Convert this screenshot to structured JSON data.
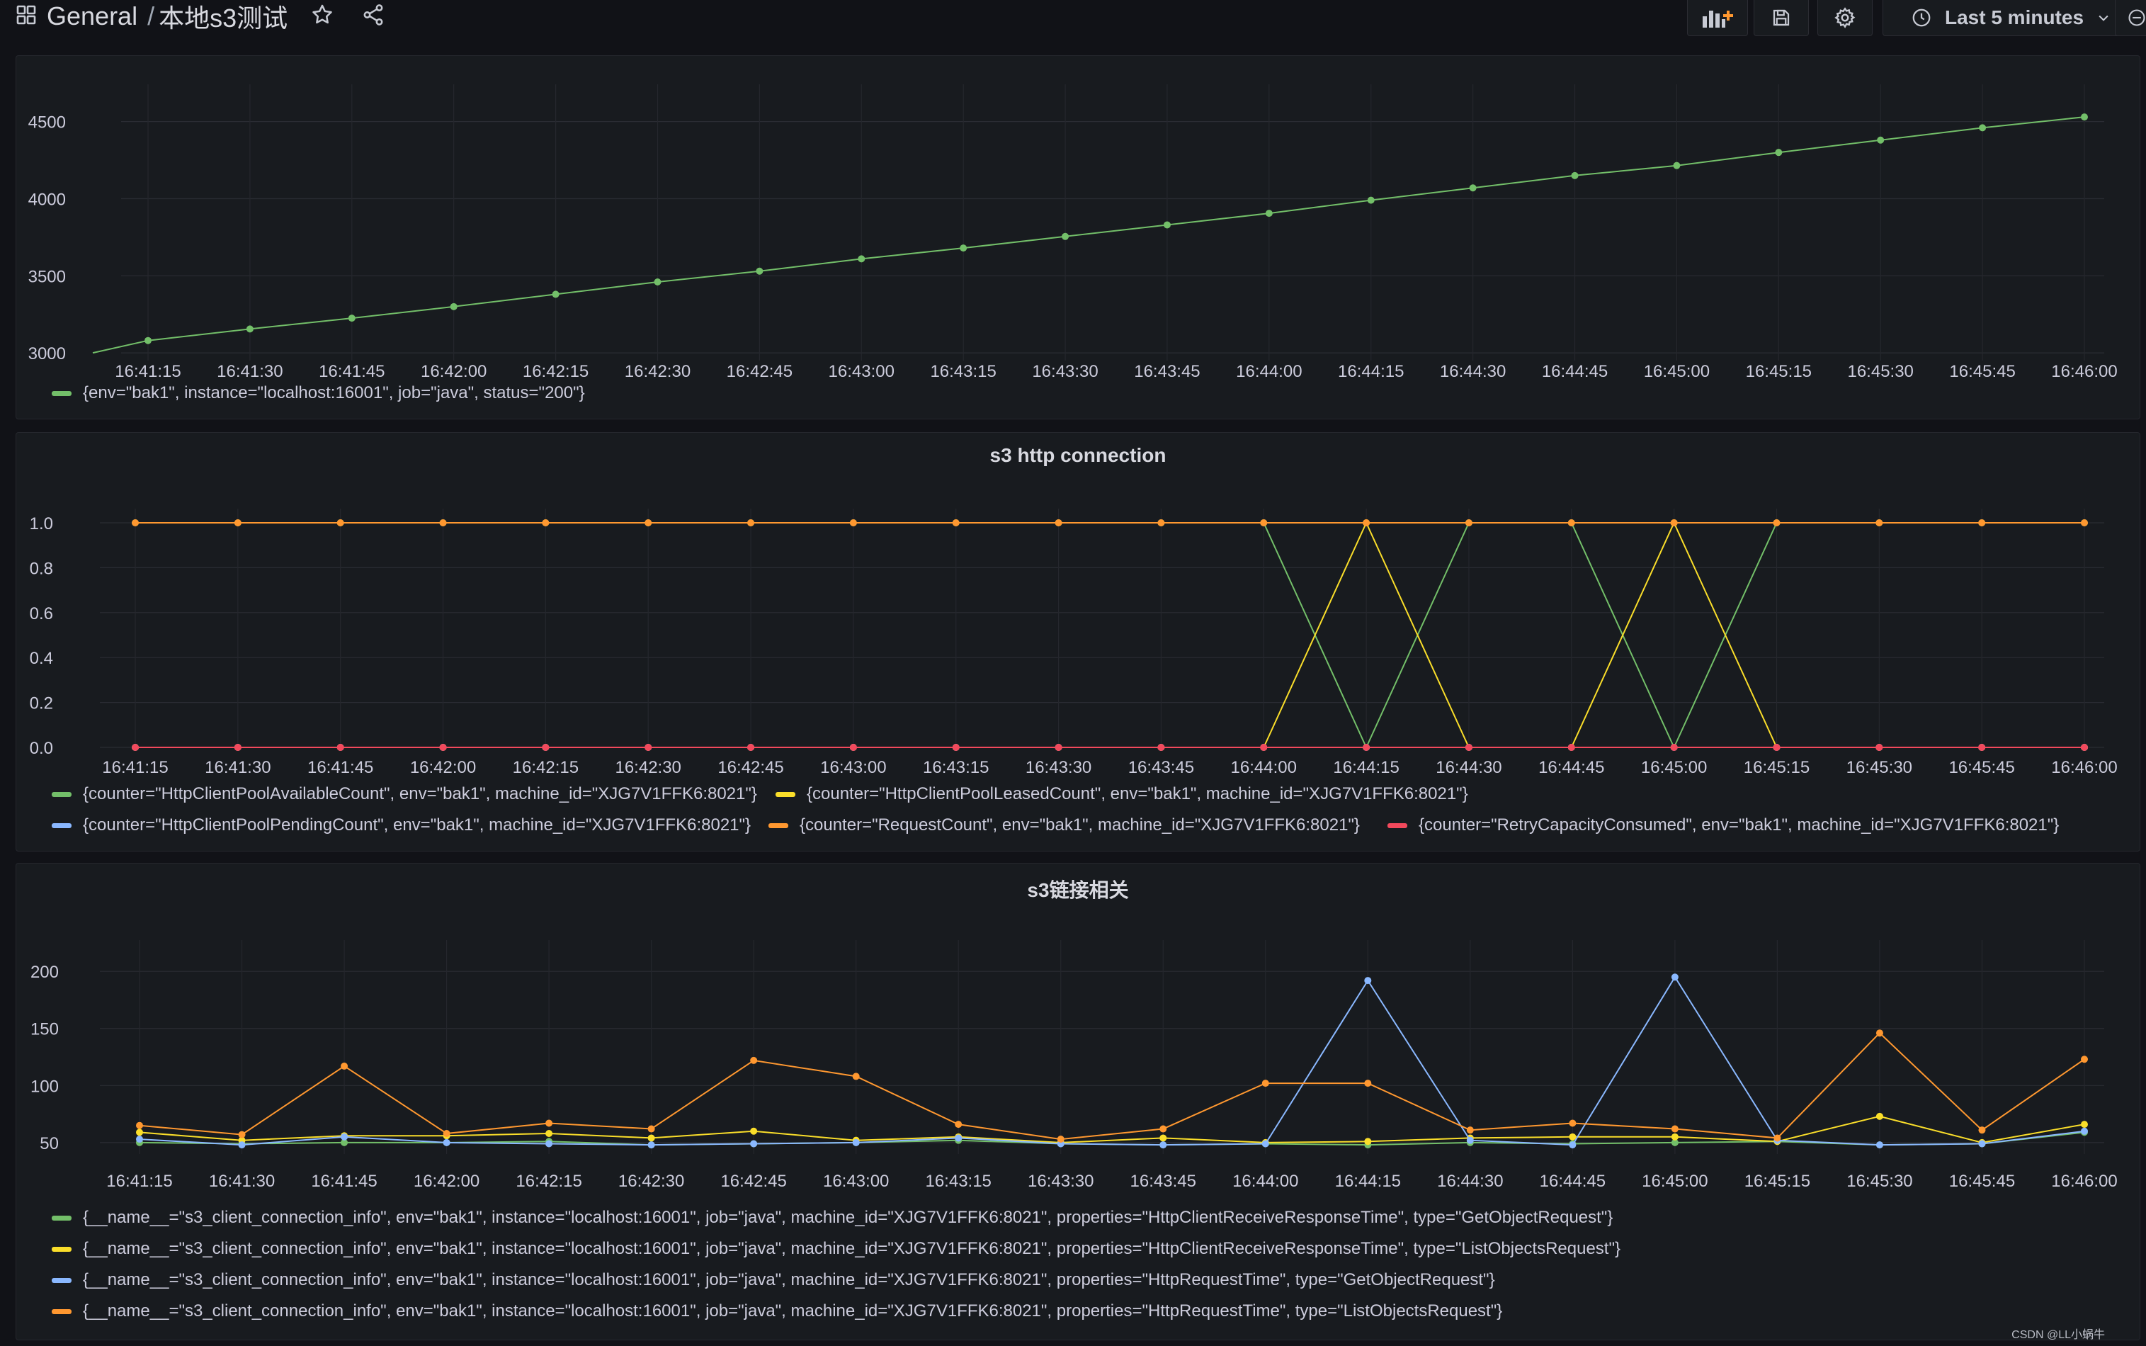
{
  "header": {
    "folder": "General",
    "separator": "/",
    "dashboard_title": "本地s3测试",
    "star_icon": "star-icon",
    "share_icon": "share-icon",
    "add_panel_icon": "add-panel-icon",
    "save_icon": "save-icon",
    "settings_icon": "gear-icon",
    "time_range": "Last 5 minutes"
  },
  "colors": {
    "green": "#73bf69",
    "yellow": "#fade2a",
    "blue": "#8ab8ff",
    "orange": "#ff9830",
    "red": "#f2495c"
  },
  "chart_data": [
    {
      "type": "line",
      "title": "",
      "ylim": [
        2950,
        4650
      ],
      "yticks": [
        3000,
        3500,
        4000,
        4500
      ],
      "x": [
        "16:41:15",
        "16:41:30",
        "16:41:45",
        "16:42:00",
        "16:42:15",
        "16:42:30",
        "16:42:45",
        "16:43:00",
        "16:43:15",
        "16:43:30",
        "16:43:45",
        "16:44:00",
        "16:44:15",
        "16:44:30",
        "16:44:45",
        "16:45:00",
        "16:45:15",
        "16:45:30",
        "16:45:45",
        "16:46:00"
      ],
      "series": [
        {
          "name": "{env=\"bak1\", instance=\"localhost:16001\", job=\"java\", status=\"200\"}",
          "color": "green",
          "values": [
            3080,
            3155,
            3225,
            3300,
            3380,
            3460,
            3530,
            3610,
            3680,
            3755,
            3830,
            3905,
            3990,
            4070,
            4150,
            4215,
            4300,
            4380,
            4460,
            4530
          ]
        }
      ]
    },
    {
      "type": "line",
      "title": "s3 http connection",
      "ylim": [
        0,
        1.0
      ],
      "yticks": [
        0.0,
        0.2,
        0.4,
        0.6,
        0.8,
        1.0
      ],
      "x": [
        "16:41:15",
        "16:41:30",
        "16:41:45",
        "16:42:00",
        "16:42:15",
        "16:42:30",
        "16:42:45",
        "16:43:00",
        "16:43:15",
        "16:43:30",
        "16:43:45",
        "16:44:00",
        "16:44:15",
        "16:44:30",
        "16:44:45",
        "16:45:00",
        "16:45:15",
        "16:45:30",
        "16:45:45",
        "16:46:00"
      ],
      "series": [
        {
          "name": "{counter=\"HttpClientPoolAvailableCount\", env=\"bak1\", machine_id=\"XJG7V1FFK6:8021\"}",
          "color": "green",
          "values": [
            1,
            1,
            1,
            1,
            1,
            1,
            1,
            1,
            1,
            1,
            1,
            1,
            0,
            1,
            1,
            0,
            1,
            1,
            1,
            1
          ]
        },
        {
          "name": "{counter=\"HttpClientPoolLeasedCount\", env=\"bak1\", machine_id=\"XJG7V1FFK6:8021\"}",
          "color": "yellow",
          "values": [
            0,
            0,
            0,
            0,
            0,
            0,
            0,
            0,
            0,
            0,
            0,
            0,
            1,
            0,
            0,
            1,
            0,
            0,
            0,
            0
          ]
        },
        {
          "name": "{counter=\"HttpClientPoolPendingCount\", env=\"bak1\", machine_id=\"XJG7V1FFK6:8021\"}",
          "color": "blue",
          "values": [
            0,
            0,
            0,
            0,
            0,
            0,
            0,
            0,
            0,
            0,
            0,
            0,
            0,
            0,
            0,
            0,
            0,
            0,
            0,
            0
          ]
        },
        {
          "name": "{counter=\"RequestCount\", env=\"bak1\", machine_id=\"XJG7V1FFK6:8021\"}",
          "color": "orange",
          "values": [
            1,
            1,
            1,
            1,
            1,
            1,
            1,
            1,
            1,
            1,
            1,
            1,
            1,
            1,
            1,
            1,
            1,
            1,
            1,
            1
          ]
        },
        {
          "name": "{counter=\"RetryCapacityConsumed\", env=\"bak1\", machine_id=\"XJG7V1FFK6:8021\"}",
          "color": "red",
          "values": [
            0,
            0,
            0,
            0,
            0,
            0,
            0,
            0,
            0,
            0,
            0,
            0,
            0,
            0,
            0,
            0,
            0,
            0,
            0,
            0
          ]
        }
      ]
    },
    {
      "type": "line",
      "title": "s3链接相关",
      "ylim": [
        40,
        215
      ],
      "yticks": [
        50,
        100,
        150,
        200
      ],
      "x": [
        "16:41:15",
        "16:41:30",
        "16:41:45",
        "16:42:00",
        "16:42:15",
        "16:42:30",
        "16:42:45",
        "16:43:00",
        "16:43:15",
        "16:43:30",
        "16:43:45",
        "16:44:00",
        "16:44:15",
        "16:44:30",
        "16:44:45",
        "16:45:00",
        "16:45:15",
        "16:45:30",
        "16:45:45",
        "16:46:00"
      ],
      "series": [
        {
          "name": "{__name__=\"s3_client_connection_info\", env=\"bak1\", instance=\"localhost:16001\", job=\"java\", machine_id=\"XJG7V1FFK6:8021\", properties=\"HttpClientReceiveResponseTime\", type=\"GetObjectRequest\"}",
          "color": "green",
          "values": [
            50,
            49,
            50,
            50,
            51,
            48,
            49,
            50,
            52,
            49,
            48,
            49,
            48,
            50,
            49,
            50,
            51,
            48,
            49,
            59
          ]
        },
        {
          "name": "{__name__=\"s3_client_connection_info\", env=\"bak1\", instance=\"localhost:16001\", job=\"java\", machine_id=\"XJG7V1FFK6:8021\", properties=\"HttpClientReceiveResponseTime\", type=\"ListObjectsRequest\"}",
          "color": "yellow",
          "values": [
            59,
            52,
            56,
            56,
            58,
            54,
            60,
            52,
            55,
            50,
            54,
            50,
            51,
            54,
            55,
            55,
            51,
            73,
            50,
            66
          ]
        },
        {
          "name": "{__name__=\"s3_client_connection_info\", env=\"bak1\", instance=\"localhost:16001\", job=\"java\", machine_id=\"XJG7V1FFK6:8021\", properties=\"HttpRequestTime\", type=\"GetObjectRequest\"}",
          "color": "blue",
          "values": [
            53,
            48,
            55,
            50,
            49,
            48,
            49,
            50,
            54,
            49,
            48,
            49,
            192,
            52,
            48,
            195,
            52,
            48,
            49,
            60
          ]
        },
        {
          "name": "{__name__=\"s3_client_connection_info\", env=\"bak1\", instance=\"localhost:16001\", job=\"java\", machine_id=\"XJG7V1FFK6:8021\", properties=\"HttpRequestTime\", type=\"ListObjectsRequest\"}",
          "color": "orange",
          "values": [
            65,
            57,
            117,
            58,
            67,
            62,
            122,
            108,
            66,
            53,
            62,
            102,
            102,
            61,
            67,
            62,
            54,
            146,
            61,
            123
          ]
        }
      ]
    }
  ],
  "watermark": "CSDN @LL小蜗牛"
}
